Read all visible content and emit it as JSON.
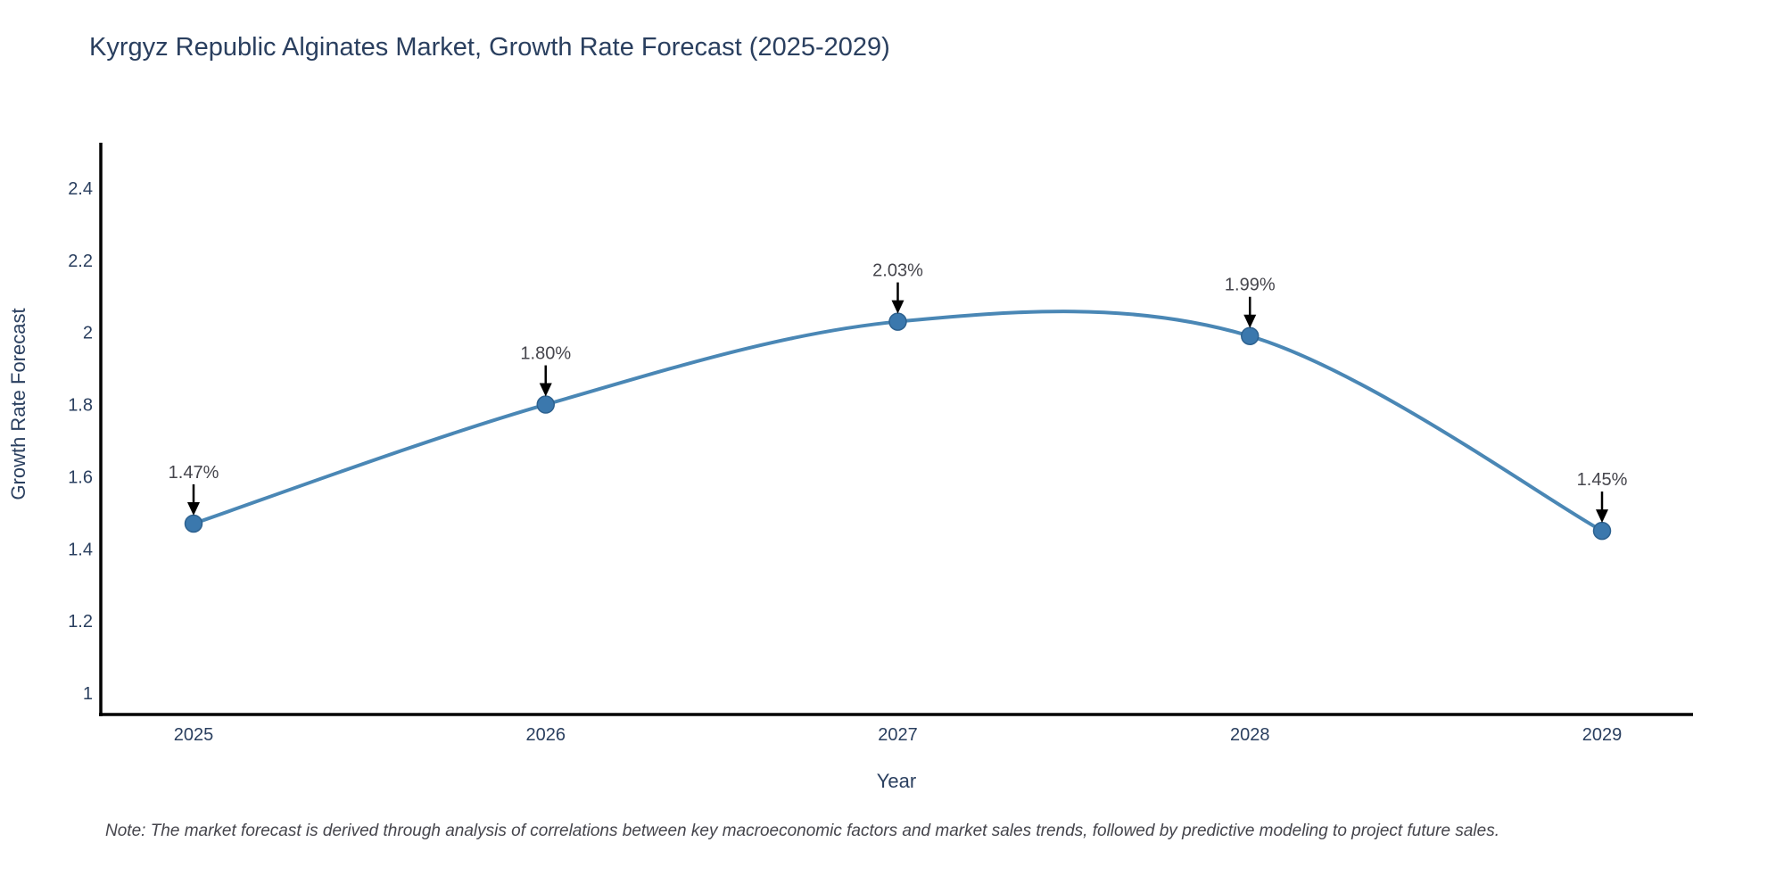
{
  "chart": {
    "title": "Kyrgyz Republic Alginates Market, Growth Rate Forecast (2025-2029)",
    "note": "Note: The market forecast is derived through analysis of correlations between key macroeconomic factors and market sales trends, followed by predictive modeling to project future sales."
  },
  "chart_data": {
    "type": "line",
    "title": "Kyrgyz Republic Alginates Market, Growth Rate Forecast (2025-2029)",
    "xlabel": "Year",
    "ylabel": "Growth Rate Forecast",
    "categories": [
      "2025",
      "2026",
      "2027",
      "2028",
      "2029"
    ],
    "values": [
      1.47,
      1.8,
      2.03,
      1.99,
      1.45
    ],
    "point_labels": [
      "1.47%",
      "1.80%",
      "2.03%",
      "1.99%",
      "1.45%"
    ],
    "yticks": [
      1,
      1.2,
      1.4,
      1.6,
      1.8,
      2,
      2.2,
      2.4
    ],
    "ytick_labels": [
      "1",
      "1.2",
      "1.4",
      "1.6",
      "1.8",
      "2",
      "2.2",
      "2.4"
    ],
    "ylim": [
      0.94,
      2.53
    ],
    "grid": false,
    "legend": "none",
    "line_style": "spline",
    "marker": "circle",
    "colors": {
      "line": "#4a87b5",
      "marker_fill": "#3b78ad",
      "marker_border": "#2d618f",
      "axis": "#000000",
      "annotation_arrow": "#000000",
      "tick_text": "#2a3f5f",
      "annotation_text": "#45454c"
    }
  }
}
